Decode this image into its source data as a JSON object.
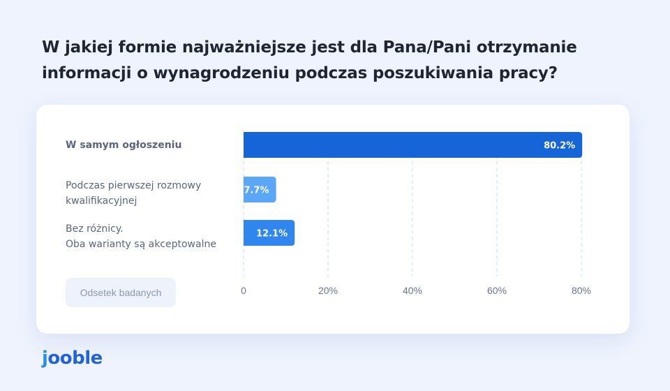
{
  "title": "W jakiej formie najważniejsze jest dla Pana/Pani otrzymanie informacji o wynagrodzeniu podczas poszukiwania pracy?",
  "legend_label": "Odsetek badanych",
  "logo": {
    "j": "j",
    "rest": "ooble"
  },
  "colors": {
    "primary": "#1565d8",
    "light": "#5aa7f7",
    "mid": "#2f86ee",
    "grid": "#c6dcf6"
  },
  "chart_data": {
    "type": "bar",
    "orientation": "horizontal",
    "categories": [
      "W samym ogłoszeniu",
      "Podczas pierwszej rozmowy kwalifikacyjnej",
      "Bez różnicy. Oba warianty są akceptowalne"
    ],
    "category_lines": [
      [
        "W samym ogłoszeniu"
      ],
      [
        "Podczas pierwszej rozmowy",
        "kwalifikacyjnej"
      ],
      [
        "Bez różnicy.",
        "Oba warianty są akceptowalne"
      ]
    ],
    "values": [
      80.2,
      7.7,
      12.1
    ],
    "value_labels": [
      "80.2%",
      "7.7%",
      "12.1%"
    ],
    "xlim": [
      0,
      80
    ],
    "xticks": [
      0,
      20,
      40,
      60,
      80
    ],
    "xtick_labels": [
      "0",
      "20%",
      "40%",
      "60%",
      "80%"
    ],
    "grid": "vertical dashed",
    "xlabel": "",
    "ylabel": ""
  }
}
